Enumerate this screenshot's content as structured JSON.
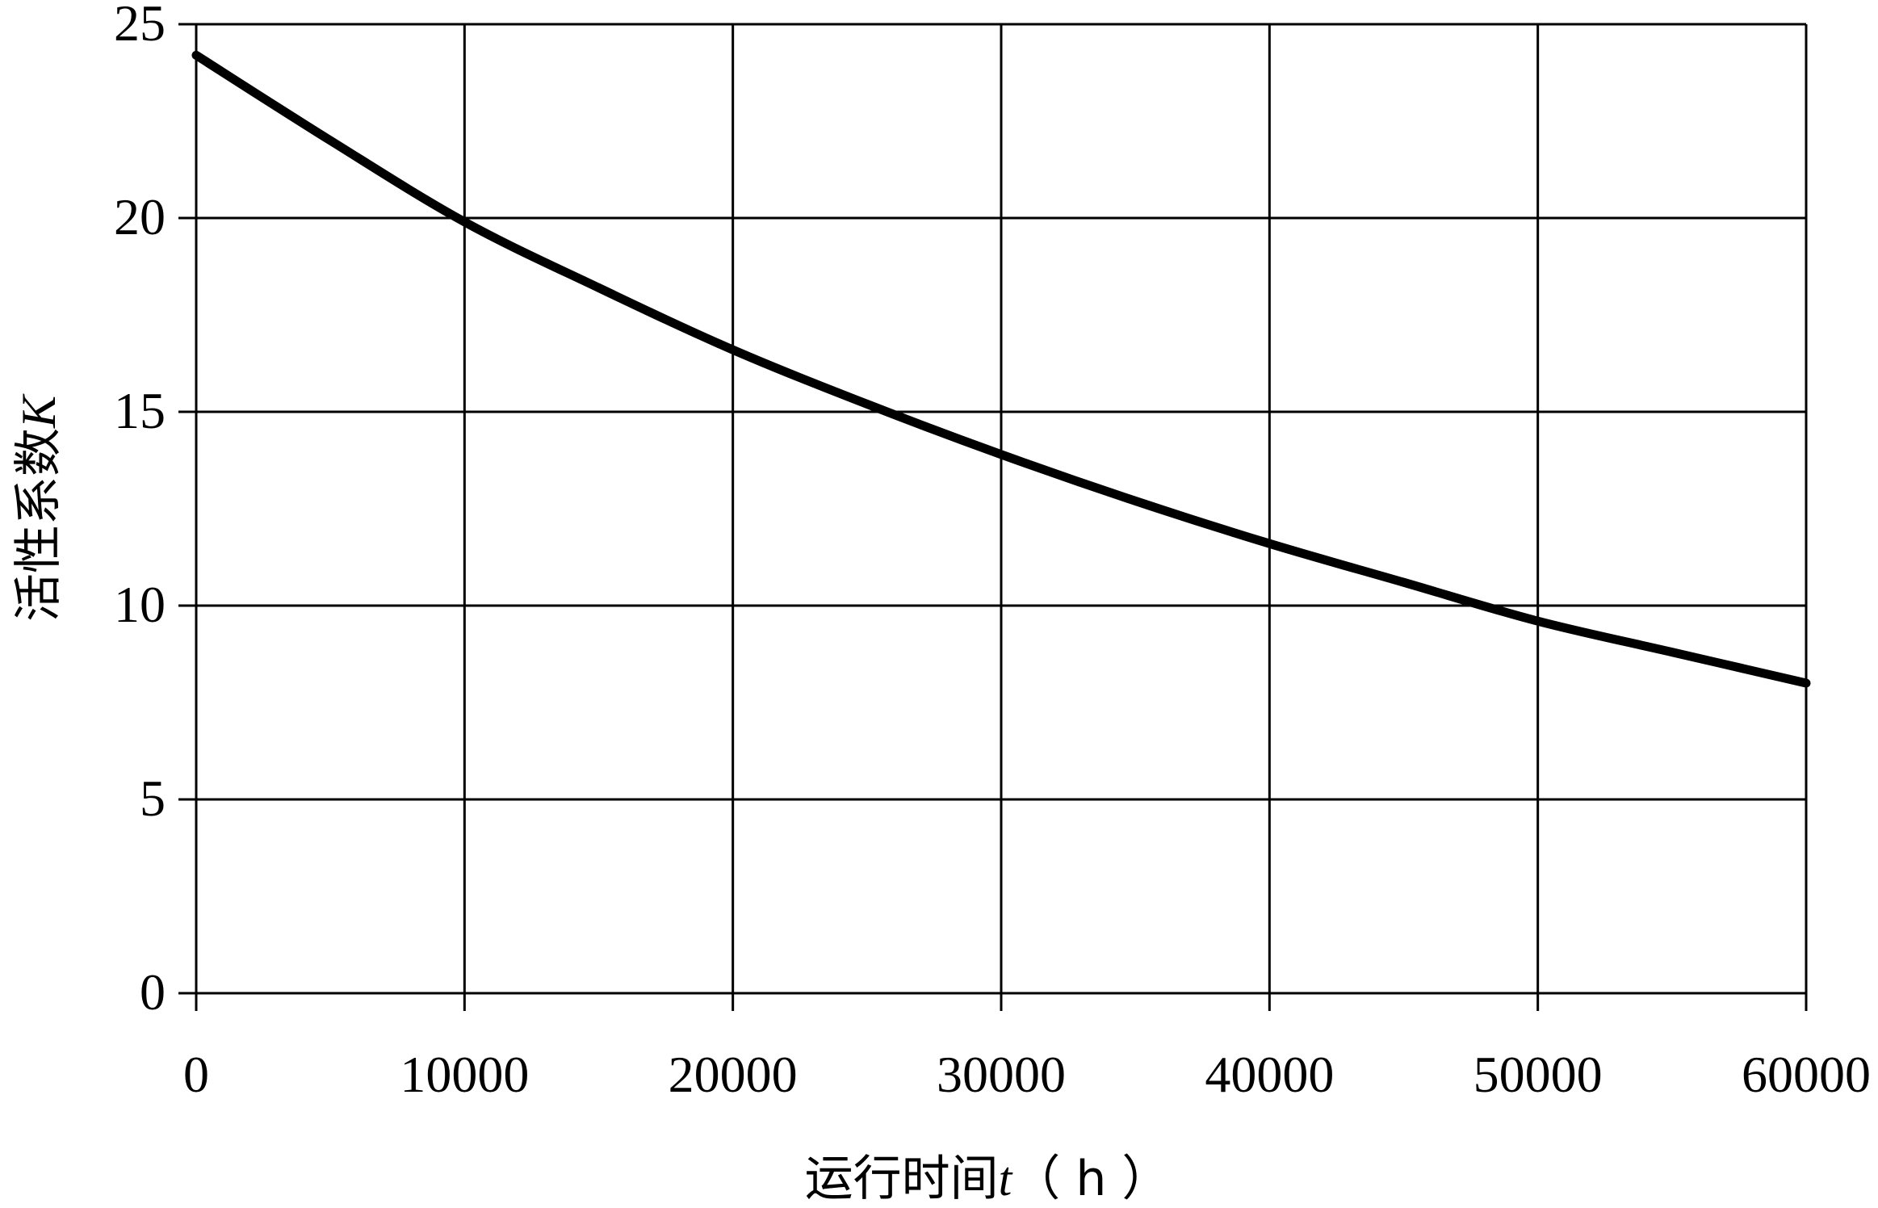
{
  "chart_data": {
    "type": "line",
    "title": "",
    "xlabel_parts": [
      {
        "text": "运行时间",
        "italic": false
      },
      {
        "text": "t",
        "italic": true
      },
      {
        "text": "（ h ）",
        "italic": false
      }
    ],
    "ylabel_parts": [
      {
        "text": "活性系数",
        "italic": false
      },
      {
        "text": "K",
        "italic": true
      }
    ],
    "xlim": [
      0,
      60000
    ],
    "ylim": [
      0,
      25
    ],
    "xticks": [
      0,
      10000,
      20000,
      30000,
      40000,
      50000,
      60000
    ],
    "yticks": [
      0,
      5,
      10,
      15,
      20,
      25
    ],
    "grid": true,
    "line_color": "#000000",
    "series": [
      {
        "x": [
          0,
          5000,
          10000,
          15000,
          20000,
          25000,
          30000,
          35000,
          40000,
          45000,
          50000,
          55000,
          60000
        ],
        "values": [
          24.2,
          22.0,
          19.9,
          18.2,
          16.6,
          15.2,
          13.9,
          12.7,
          11.6,
          10.6,
          9.6,
          8.8,
          8.0
        ]
      }
    ]
  }
}
